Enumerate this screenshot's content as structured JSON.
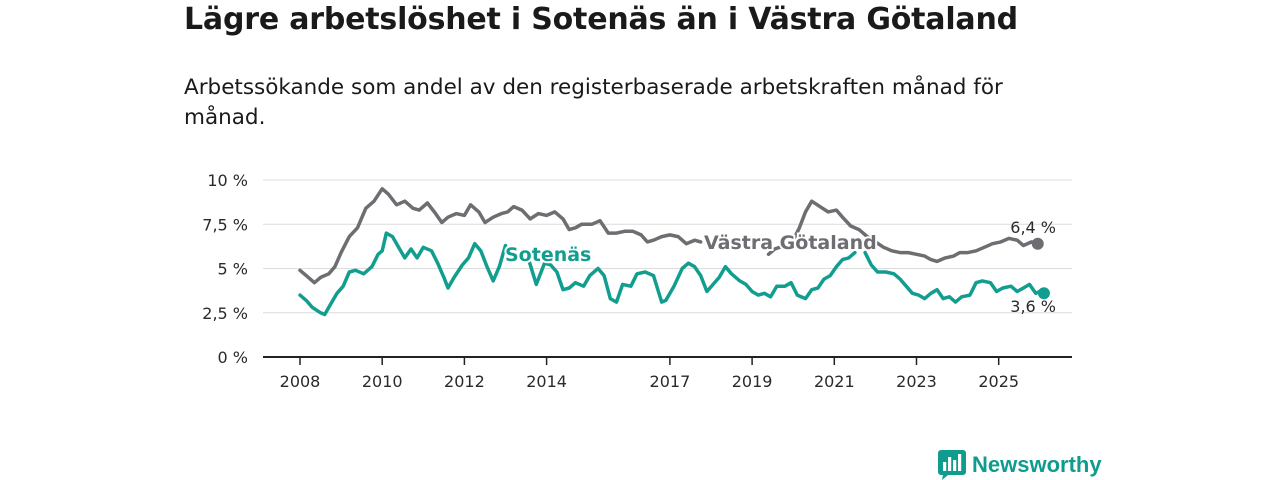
{
  "title": "Lägre arbetslöshet i Sotenäs än i Västra Götaland",
  "subtitle": "Arbetssökande som andel av den registerbaserade arbetskraften månad för månad.",
  "brand": {
    "name": "Newsworthy",
    "icon": "bar-chart-bubble-icon",
    "color": "#0f9c8e"
  },
  "chart_data": {
    "type": "line",
    "title": "Lägre arbetslöshet i Sotenäs än i Västra Götaland",
    "xlabel": "",
    "ylabel": "",
    "xlim": [
      2008,
      2026.1
    ],
    "ylim": [
      0,
      10
    ],
    "grid": true,
    "y_ticks": [
      0,
      2.5,
      5,
      7.5,
      10
    ],
    "y_tick_labels": [
      "0 %",
      "2,5 %",
      "5 %",
      "7,5 %",
      "10 %"
    ],
    "x_ticks": [
      2008,
      2010,
      2012,
      2014,
      2017,
      2019,
      2021,
      2023,
      2025
    ],
    "x_tick_labels": [
      "2008",
      "2010",
      "2012",
      "2014",
      "2017",
      "2019",
      "2021",
      "2023",
      "2025"
    ],
    "series": [
      {
        "name": "Västra Götaland",
        "color": "#6d6d72",
        "end_label": "6,4 %",
        "points": [
          [
            2008.0,
            4.9
          ],
          [
            2008.15,
            4.6
          ],
          [
            2008.35,
            4.2
          ],
          [
            2008.5,
            4.5
          ],
          [
            2008.7,
            4.7
          ],
          [
            2008.85,
            5.1
          ],
          [
            2009.0,
            5.9
          ],
          [
            2009.2,
            6.8
          ],
          [
            2009.4,
            7.3
          ],
          [
            2009.6,
            8.4
          ],
          [
            2009.8,
            8.8
          ],
          [
            2010.0,
            9.5
          ],
          [
            2010.15,
            9.2
          ],
          [
            2010.35,
            8.6
          ],
          [
            2010.55,
            8.8
          ],
          [
            2010.75,
            8.4
          ],
          [
            2010.9,
            8.3
          ],
          [
            2011.1,
            8.7
          ],
          [
            2011.3,
            8.1
          ],
          [
            2011.45,
            7.6
          ],
          [
            2011.6,
            7.9
          ],
          [
            2011.8,
            8.1
          ],
          [
            2012.0,
            8.0
          ],
          [
            2012.15,
            8.6
          ],
          [
            2012.35,
            8.2
          ],
          [
            2012.5,
            7.6
          ],
          [
            2012.7,
            7.9
          ],
          [
            2012.9,
            8.1
          ],
          [
            2013.05,
            8.2
          ],
          [
            2013.2,
            8.5
          ],
          [
            2013.4,
            8.3
          ],
          [
            2013.6,
            7.8
          ],
          [
            2013.8,
            8.1
          ],
          [
            2014.0,
            8.0
          ],
          [
            2014.2,
            8.2
          ],
          [
            2014.4,
            7.8
          ],
          [
            2014.55,
            7.2
          ],
          [
            2014.7,
            7.3
          ],
          [
            2014.85,
            7.5
          ],
          [
            2015.1,
            7.5
          ],
          [
            2015.3,
            7.7
          ],
          [
            2015.5,
            7.0
          ],
          [
            2015.7,
            7.0
          ],
          [
            2015.9,
            7.1
          ],
          [
            2016.1,
            7.1
          ],
          [
            2016.3,
            6.9
          ],
          [
            2016.45,
            6.5
          ],
          [
            2016.6,
            6.6
          ],
          [
            2016.8,
            6.8
          ],
          [
            2017.0,
            6.9
          ],
          [
            2017.2,
            6.8
          ],
          [
            2017.4,
            6.4
          ],
          [
            2017.6,
            6.6
          ],
          [
            2017.75,
            6.5
          ]
        ],
        "points_2": [
          [
            2019.4,
            5.8
          ],
          [
            2019.55,
            6.1
          ],
          [
            2019.8,
            6.3
          ],
          [
            2020.0,
            6.6
          ],
          [
            2020.15,
            7.3
          ],
          [
            2020.3,
            8.2
          ],
          [
            2020.45,
            8.8
          ],
          [
            2020.65,
            8.5
          ],
          [
            2020.85,
            8.2
          ],
          [
            2021.05,
            8.3
          ],
          [
            2021.2,
            7.9
          ],
          [
            2021.4,
            7.4
          ],
          [
            2021.6,
            7.2
          ],
          [
            2021.8,
            6.8
          ],
          [
            2022.0,
            6.5
          ],
          [
            2022.2,
            6.2
          ],
          [
            2022.4,
            6.0
          ],
          [
            2022.6,
            5.9
          ],
          [
            2022.8,
            5.9
          ],
          [
            2023.0,
            5.8
          ],
          [
            2023.2,
            5.7
          ],
          [
            2023.35,
            5.5
          ],
          [
            2023.5,
            5.4
          ],
          [
            2023.7,
            5.6
          ],
          [
            2023.9,
            5.7
          ],
          [
            2024.05,
            5.9
          ],
          [
            2024.25,
            5.9
          ],
          [
            2024.45,
            6.0
          ],
          [
            2024.65,
            6.2
          ],
          [
            2024.85,
            6.4
          ],
          [
            2025.05,
            6.5
          ],
          [
            2025.25,
            6.7
          ],
          [
            2025.45,
            6.6
          ],
          [
            2025.6,
            6.3
          ],
          [
            2025.8,
            6.5
          ],
          [
            2025.95,
            6.4
          ]
        ]
      },
      {
        "name": "Sotenäs",
        "color": "#129e8f",
        "end_label": "3,6 %",
        "points": [
          [
            2008.0,
            3.5
          ],
          [
            2008.15,
            3.2
          ],
          [
            2008.3,
            2.8
          ],
          [
            2008.5,
            2.5
          ],
          [
            2008.6,
            2.4
          ],
          [
            2008.75,
            3.0
          ],
          [
            2008.9,
            3.6
          ],
          [
            2009.05,
            4.0
          ],
          [
            2009.2,
            4.8
          ],
          [
            2009.35,
            4.9
          ],
          [
            2009.55,
            4.7
          ],
          [
            2009.75,
            5.1
          ],
          [
            2009.9,
            5.8
          ],
          [
            2010.0,
            6.0
          ],
          [
            2010.1,
            7.0
          ],
          [
            2010.25,
            6.8
          ],
          [
            2010.4,
            6.2
          ],
          [
            2010.55,
            5.6
          ],
          [
            2010.7,
            6.1
          ],
          [
            2010.85,
            5.6
          ],
          [
            2011.0,
            6.2
          ],
          [
            2011.2,
            6.0
          ],
          [
            2011.35,
            5.3
          ],
          [
            2011.5,
            4.5
          ],
          [
            2011.6,
            3.9
          ],
          [
            2011.75,
            4.5
          ],
          [
            2011.95,
            5.2
          ],
          [
            2012.1,
            5.6
          ],
          [
            2012.25,
            6.4
          ],
          [
            2012.4,
            6.0
          ],
          [
            2012.55,
            5.1
          ],
          [
            2012.7,
            4.3
          ],
          [
            2012.85,
            5.1
          ],
          [
            2013.0,
            6.3
          ]
        ],
        "points_2": [
          [
            2013.55,
            5.6
          ],
          [
            2013.75,
            4.1
          ],
          [
            2013.95,
            5.3
          ],
          [
            2014.1,
            5.2
          ],
          [
            2014.25,
            4.8
          ],
          [
            2014.4,
            3.8
          ],
          [
            2014.55,
            3.9
          ],
          [
            2014.7,
            4.2
          ],
          [
            2014.9,
            4.0
          ],
          [
            2015.05,
            4.6
          ],
          [
            2015.25,
            5.0
          ],
          [
            2015.4,
            4.6
          ],
          [
            2015.55,
            3.3
          ],
          [
            2015.7,
            3.1
          ],
          [
            2015.85,
            4.1
          ],
          [
            2016.05,
            4.0
          ],
          [
            2016.2,
            4.7
          ],
          [
            2016.4,
            4.8
          ],
          [
            2016.6,
            4.6
          ],
          [
            2016.8,
            3.1
          ],
          [
            2016.9,
            3.2
          ],
          [
            2017.1,
            4.0
          ],
          [
            2017.3,
            5.0
          ],
          [
            2017.45,
            5.3
          ],
          [
            2017.6,
            5.1
          ],
          [
            2017.75,
            4.6
          ],
          [
            2017.9,
            3.7
          ],
          [
            2018.05,
            4.1
          ],
          [
            2018.2,
            4.5
          ],
          [
            2018.35,
            5.1
          ],
          [
            2018.5,
            4.7
          ],
          [
            2018.7,
            4.3
          ],
          [
            2018.85,
            4.1
          ],
          [
            2019.0,
            3.7
          ],
          [
            2019.15,
            3.5
          ],
          [
            2019.3,
            3.6
          ],
          [
            2019.45,
            3.4
          ],
          [
            2019.6,
            4.0
          ],
          [
            2019.8,
            4.0
          ],
          [
            2019.95,
            4.2
          ],
          [
            2020.1,
            3.5
          ],
          [
            2020.3,
            3.3
          ],
          [
            2020.45,
            3.8
          ],
          [
            2020.6,
            3.9
          ],
          [
            2020.75,
            4.4
          ],
          [
            2020.9,
            4.6
          ],
          [
            2021.05,
            5.1
          ],
          [
            2021.2,
            5.5
          ],
          [
            2021.35,
            5.6
          ],
          [
            2021.5,
            5.9
          ]
        ],
        "points_3": [
          [
            2021.75,
            5.9
          ],
          [
            2021.9,
            5.2
          ],
          [
            2022.05,
            4.8
          ],
          [
            2022.25,
            4.8
          ],
          [
            2022.45,
            4.7
          ],
          [
            2022.6,
            4.4
          ],
          [
            2022.75,
            4.0
          ],
          [
            2022.9,
            3.6
          ],
          [
            2023.05,
            3.5
          ],
          [
            2023.2,
            3.3
          ],
          [
            2023.35,
            3.6
          ],
          [
            2023.5,
            3.8
          ],
          [
            2023.65,
            3.3
          ],
          [
            2023.8,
            3.4
          ],
          [
            2023.95,
            3.1
          ],
          [
            2024.1,
            3.4
          ],
          [
            2024.3,
            3.5
          ],
          [
            2024.45,
            4.2
          ],
          [
            2024.6,
            4.3
          ],
          [
            2024.8,
            4.2
          ],
          [
            2024.95,
            3.7
          ],
          [
            2025.1,
            3.9
          ],
          [
            2025.3,
            4.0
          ],
          [
            2025.45,
            3.7
          ],
          [
            2025.6,
            3.9
          ],
          [
            2025.75,
            4.1
          ],
          [
            2025.9,
            3.6
          ],
          [
            2026.0,
            3.7
          ],
          [
            2026.1,
            3.6
          ]
        ]
      }
    ]
  }
}
